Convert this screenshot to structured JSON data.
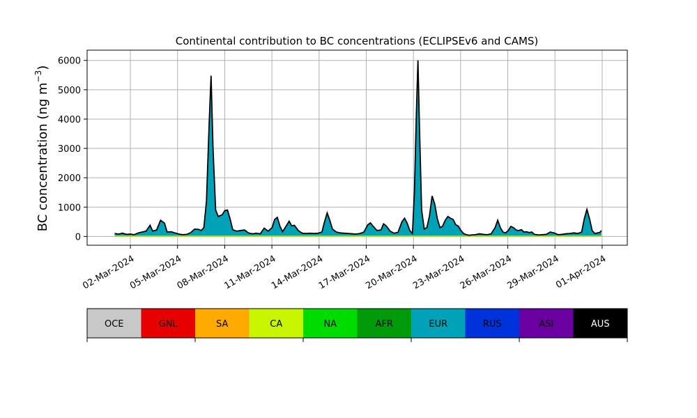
{
  "chart_data": {
    "type": "area",
    "title": "Continental contribution to BC concentrations (ECLIPSEv6 and CAMS)",
    "ylabel": "BC concentration (ng m",
    "ylabel_sup": "−3",
    "ylabel_close": ")",
    "xlabel": "",
    "ylim": [
      -300,
      6350
    ],
    "xlim_days": [
      -1.75,
      32.6
    ],
    "grid": true,
    "yticks": [
      0,
      1000,
      2000,
      3000,
      4000,
      5000,
      6000
    ],
    "xticks": [
      {
        "day": 1,
        "label": "02-Mar-2024"
      },
      {
        "day": 4,
        "label": "05-Mar-2024"
      },
      {
        "day": 7,
        "label": "08-Mar-2024"
      },
      {
        "day": 10,
        "label": "11-Mar-2024"
      },
      {
        "day": 13,
        "label": "14-Mar-2024"
      },
      {
        "day": 16,
        "label": "17-Mar-2024"
      },
      {
        "day": 19,
        "label": "20-Mar-2024"
      },
      {
        "day": 22,
        "label": "23-Mar-2024"
      },
      {
        "day": 25,
        "label": "26-Mar-2024"
      },
      {
        "day": 28,
        "label": "29-Mar-2024"
      },
      {
        "day": 31,
        "label": "01-Apr-2024"
      }
    ],
    "x_start": "2024-03-01 00:00",
    "x_note_unit": "days",
    "series": [
      {
        "name": "EUR",
        "color": "#00a2b8",
        "points": [
          [
            0,
            100
          ],
          [
            0.3,
            80
          ],
          [
            0.6,
            110
          ],
          [
            0.9,
            70
          ],
          [
            1.2,
            80
          ],
          [
            1.5,
            60
          ],
          [
            1.8,
            120
          ],
          [
            2.1,
            150
          ],
          [
            2.4,
            180
          ],
          [
            2.7,
            380
          ],
          [
            2.9,
            180
          ],
          [
            3.2,
            220
          ],
          [
            3.5,
            550
          ],
          [
            3.8,
            450
          ],
          [
            4.0,
            150
          ],
          [
            4.3,
            160
          ],
          [
            4.6,
            120
          ],
          [
            4.9,
            80
          ],
          [
            5.2,
            60
          ],
          [
            5.5,
            70
          ],
          [
            5.8,
            130
          ],
          [
            6.1,
            250
          ],
          [
            6.4,
            240
          ],
          [
            6.6,
            200
          ],
          [
            6.8,
            300
          ],
          [
            7.0,
            1200
          ],
          [
            7.2,
            3800
          ],
          [
            7.35,
            5480
          ],
          [
            7.5,
            3000
          ],
          [
            7.7,
            900
          ],
          [
            7.9,
            680
          ],
          [
            8.2,
            740
          ],
          [
            8.4,
            880
          ],
          [
            8.6,
            900
          ],
          [
            8.8,
            600
          ],
          [
            9.0,
            230
          ],
          [
            9.3,
            180
          ],
          [
            9.6,
            200
          ],
          [
            9.9,
            220
          ],
          [
            10.2,
            120
          ],
          [
            10.5,
            90
          ],
          [
            10.8,
            110
          ],
          [
            11.1,
            90
          ],
          [
            11.4,
            280
          ],
          [
            11.7,
            180
          ],
          [
            12.0,
            300
          ],
          [
            12.2,
            580
          ],
          [
            12.4,
            650
          ],
          [
            12.6,
            350
          ],
          [
            12.8,
            160
          ],
          [
            13.0,
            300
          ],
          [
            13.3,
            520
          ],
          [
            13.5,
            360
          ],
          [
            13.7,
            380
          ],
          [
            14.0,
            200
          ],
          [
            14.3,
            110
          ],
          [
            14.6,
            100
          ],
          [
            14.9,
            110
          ],
          [
            15.2,
            100
          ],
          [
            15.5,
            110
          ],
          [
            15.8,
            150
          ],
          [
            16.0,
            500
          ],
          [
            16.2,
            800
          ],
          [
            16.4,
            550
          ],
          [
            16.6,
            250
          ],
          [
            16.9,
            150
          ],
          [
            17.2,
            120
          ],
          [
            17.5,
            110
          ],
          [
            17.8,
            100
          ],
          [
            18.1,
            90
          ],
          [
            18.4,
            80
          ],
          [
            18.7,
            100
          ],
          [
            19.0,
            150
          ],
          [
            19.3,
            400
          ],
          [
            19.5,
            460
          ],
          [
            19.7,
            350
          ],
          [
            20.0,
            200
          ],
          [
            20.3,
            220
          ],
          [
            20.5,
            430
          ],
          [
            20.7,
            360
          ],
          [
            21.0,
            180
          ],
          [
            21.3,
            110
          ],
          [
            21.6,
            140
          ],
          [
            21.9,
            500
          ],
          [
            22.1,
            620
          ],
          [
            22.3,
            450
          ],
          [
            22.5,
            200
          ],
          [
            22.7,
            100
          ],
          [
            22.85,
            1500
          ],
          [
            23.0,
            4200
          ],
          [
            23.12,
            6000
          ],
          [
            23.25,
            3500
          ],
          [
            23.4,
            900
          ],
          [
            23.6,
            250
          ],
          [
            23.8,
            300
          ],
          [
            24.0,
            700
          ],
          [
            24.2,
            1380
          ],
          [
            24.4,
            1100
          ],
          [
            24.6,
            600
          ],
          [
            24.8,
            300
          ],
          [
            25.0,
            350
          ],
          [
            25.2,
            550
          ],
          [
            25.4,
            680
          ],
          [
            25.6,
            620
          ],
          [
            25.8,
            580
          ],
          [
            26.0,
            400
          ],
          [
            26.2,
            350
          ],
          [
            26.4,
            200
          ],
          [
            26.6,
            100
          ],
          [
            26.8,
            60
          ],
          [
            27.0,
            40
          ],
          [
            27.2,
            50
          ],
          [
            27.5,
            60
          ],
          [
            27.8,
            90
          ],
          [
            28.1,
            70
          ],
          [
            28.4,
            60
          ],
          [
            28.7,
            90
          ],
          [
            29.0,
            300
          ],
          [
            29.2,
            550
          ],
          [
            29.4,
            300
          ],
          [
            29.6,
            150
          ],
          [
            29.8,
            120
          ],
          [
            30.0,
            200
          ],
          [
            30.2,
            340
          ],
          [
            30.4,
            300
          ],
          [
            30.6,
            220
          ],
          [
            30.8,
            200
          ],
          [
            31.0,
            230
          ],
          [
            31.2,
            150
          ],
          [
            31.4,
            160
          ],
          [
            31.6,
            130
          ],
          [
            31.8,
            150
          ],
          [
            32.0,
            70
          ],
          [
            32.3,
            50
          ],
          [
            32.6,
            60
          ],
          [
            32.9,
            70
          ],
          [
            33.2,
            150
          ],
          [
            33.5,
            120
          ],
          [
            33.8,
            60
          ],
          [
            34.1,
            70
          ],
          [
            34.4,
            90
          ],
          [
            34.7,
            100
          ],
          [
            35.0,
            120
          ],
          [
            35.3,
            100
          ],
          [
            35.6,
            150
          ],
          [
            35.8,
            600
          ],
          [
            36.0,
            920
          ],
          [
            36.2,
            600
          ],
          [
            36.4,
            200
          ],
          [
            36.6,
            100
          ],
          [
            36.8,
            120
          ],
          [
            37.0,
            140
          ],
          [
            37.1,
            200
          ]
        ]
      },
      {
        "name": "AFR",
        "color": "#009a0a",
        "points": [
          [
            0,
            5
          ],
          [
            18,
            5
          ],
          [
            37.1,
            5
          ]
        ]
      },
      {
        "name": "CA",
        "color": "#c8f500",
        "points": [
          [
            0,
            8
          ],
          [
            18,
            8
          ],
          [
            37.1,
            8
          ]
        ]
      }
    ],
    "legend": {
      "placement": "bottom",
      "entries": [
        {
          "name": "OCE",
          "color": "#c8c8c8",
          "text_color": "#000000"
        },
        {
          "name": "GNL",
          "color": "#e60000",
          "text_color": "#000000"
        },
        {
          "name": "SA",
          "color": "#ffaa00",
          "text_color": "#000000"
        },
        {
          "name": "CA",
          "color": "#c8f500",
          "text_color": "#000000"
        },
        {
          "name": "NA",
          "color": "#00dc00",
          "text_color": "#000000"
        },
        {
          "name": "AFR",
          "color": "#009a0a",
          "text_color": "#000000"
        },
        {
          "name": "EUR",
          "color": "#00a2b8",
          "text_color": "#000000"
        },
        {
          "name": "RUS",
          "color": "#0032dc",
          "text_color": "#000000"
        },
        {
          "name": "ASI",
          "color": "#6a00a0",
          "text_color": "#000000"
        },
        {
          "name": "AUS",
          "color": "#000000",
          "text_color": "#ffffff"
        }
      ]
    }
  }
}
